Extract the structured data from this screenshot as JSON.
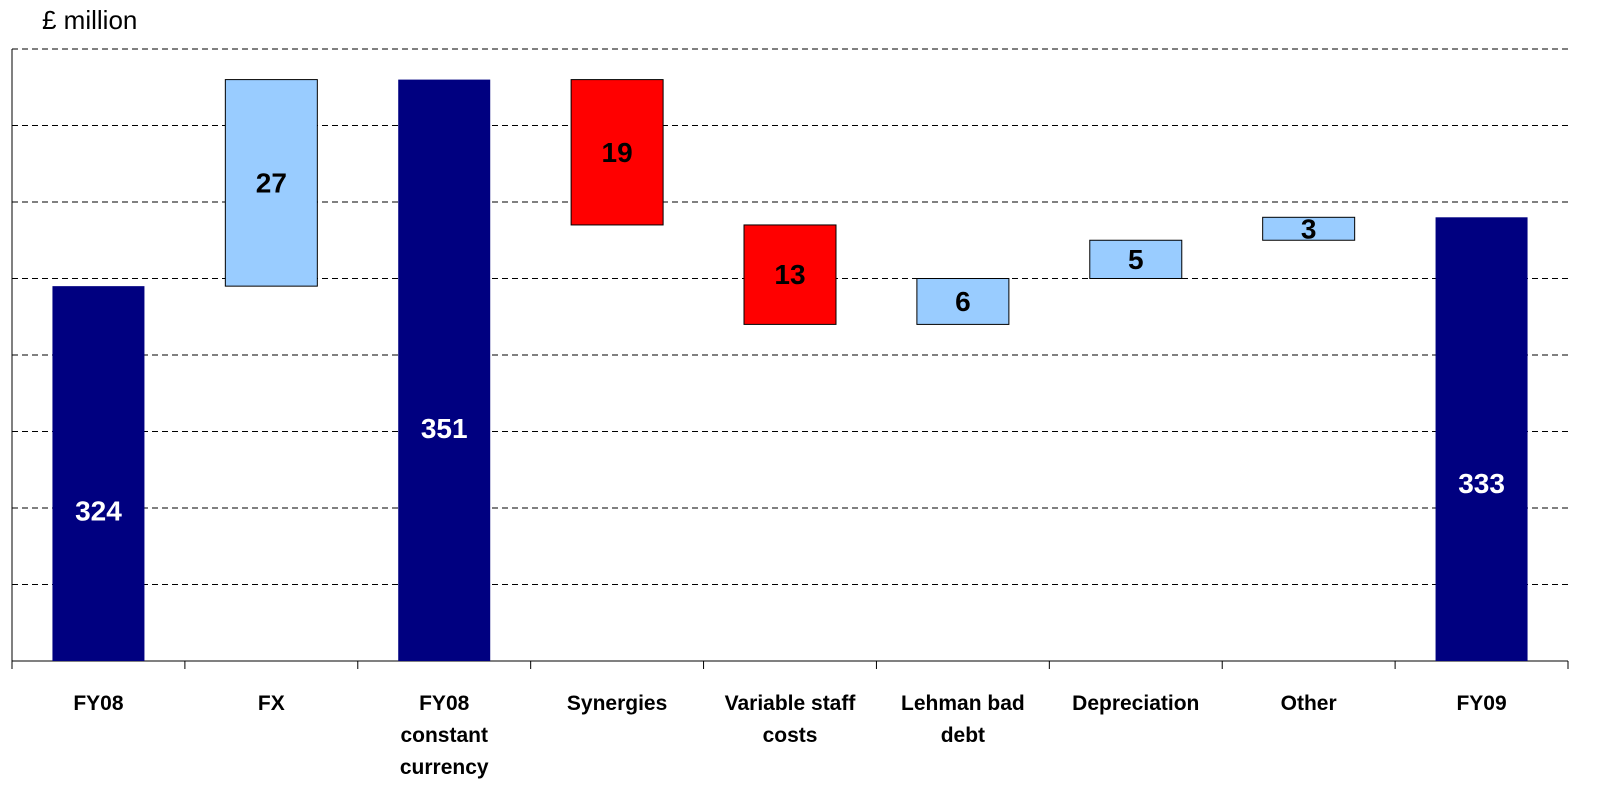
{
  "chart_data": {
    "type": "waterfall",
    "title": "£ million",
    "categories": [
      "FY08",
      "FX",
      "FY08 constant currency",
      "Synergies",
      "Variable staff costs",
      "Lehman bad debt",
      "Depreciation",
      "Other",
      "FY09"
    ],
    "values": [
      324,
      27,
      351,
      19,
      13,
      6,
      5,
      3,
      333
    ],
    "directions": [
      "total",
      "up",
      "total",
      "down",
      "down",
      "up",
      "up",
      "up",
      "total"
    ],
    "colors": {
      "total": "#000080",
      "up": "#99ccff",
      "down": "#ff0000"
    },
    "ylim": [
      275,
      355
    ],
    "yticks": [
      275,
      285,
      295,
      305,
      315,
      325,
      335,
      345,
      355
    ],
    "grid": true
  }
}
